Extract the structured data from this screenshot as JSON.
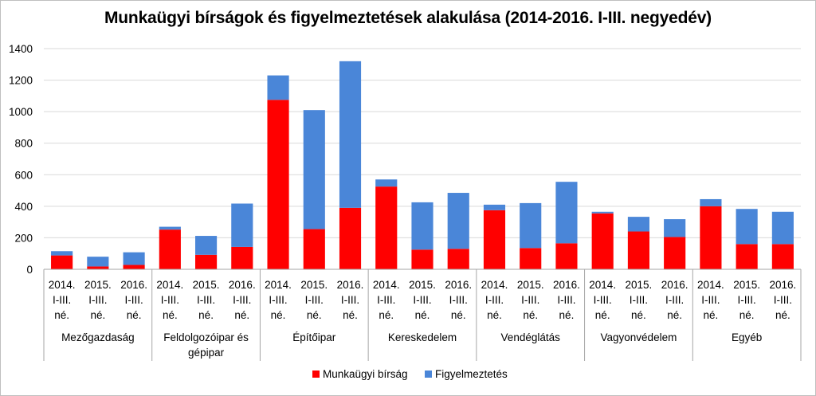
{
  "chart_data": {
    "type": "bar",
    "stacked": true,
    "title": "Munkaügyi bírságok és figyelmeztetések alakulása (2014-2016. I-III. negyedév)",
    "ylim": [
      0,
      1400
    ],
    "yticks": [
      0,
      200,
      400,
      600,
      800,
      1000,
      1200,
      1400
    ],
    "grid": true,
    "legend_position": "bottom",
    "groups": [
      "Mezőgazdaság",
      "Feldolgozóipar és gépipar",
      "Építőipar",
      "Kereskedelem",
      "Vendéglátás",
      "Vagyonvédelem",
      "Egyéb"
    ],
    "periods": [
      [
        "2014.",
        "I-III.",
        "né."
      ],
      [
        "2015.",
        "I-III.",
        "né."
      ],
      [
        "2016.",
        "I-III.",
        "né."
      ]
    ],
    "series": [
      {
        "name": "Munkaügyi bírság",
        "color": "#ff0000",
        "values": [
          88,
          18,
          28,
          252,
          92,
          142,
          1075,
          255,
          390,
          525,
          125,
          130,
          375,
          135,
          165,
          355,
          240,
          205,
          400,
          160,
          160
        ]
      },
      {
        "name": "Figyelmeztetés",
        "color": "#4a86d8",
        "values": [
          27,
          62,
          80,
          18,
          120,
          275,
          155,
          755,
          930,
          45,
          300,
          355,
          35,
          285,
          390,
          10,
          93,
          113,
          45,
          223,
          205
        ]
      }
    ]
  }
}
